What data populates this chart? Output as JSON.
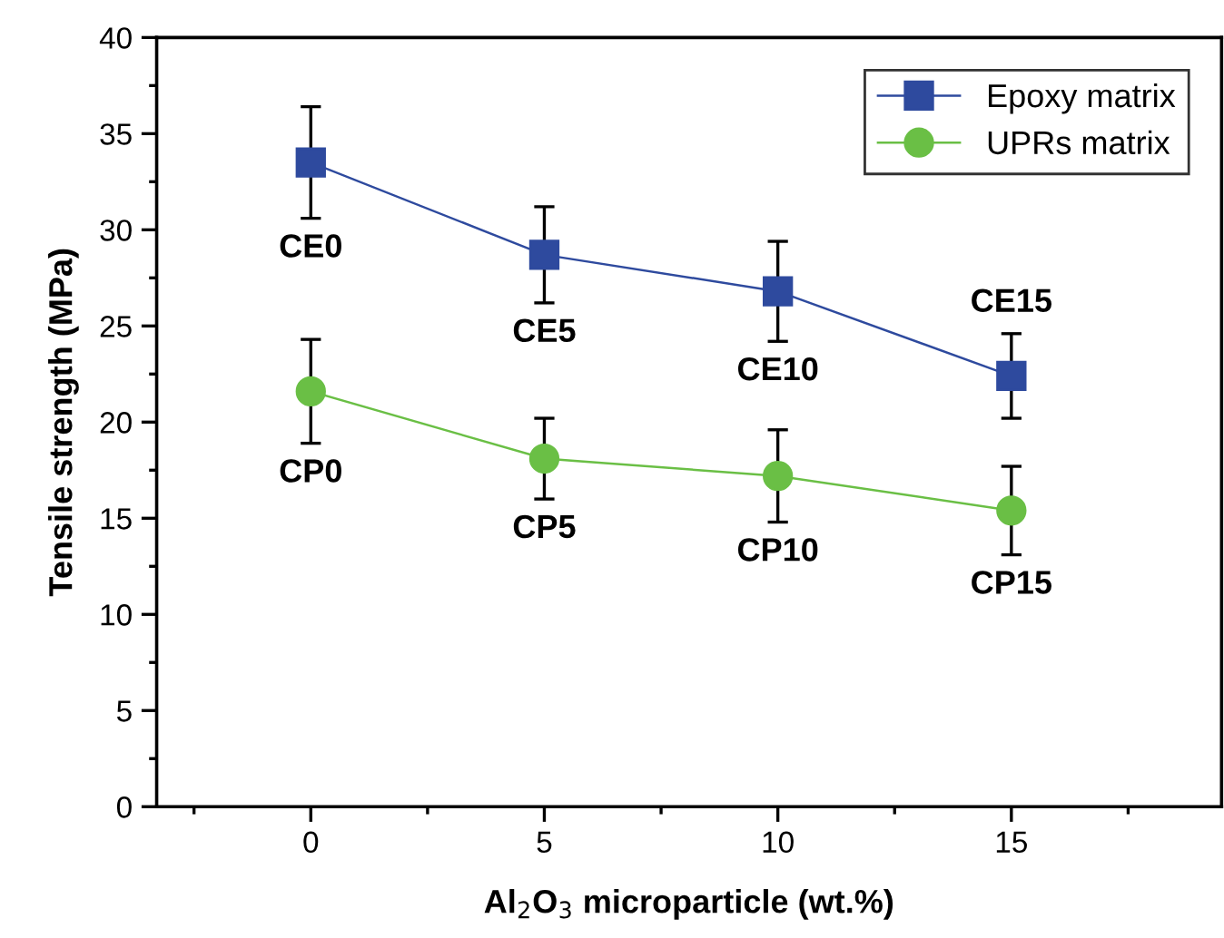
{
  "chart_data": {
    "type": "line",
    "xlabel": "Al$_{2}$O$_{3}$ microparticle (wt.%)",
    "ylabel": "Tensile strength (MPa)",
    "x": [
      0,
      5,
      10,
      15
    ],
    "series": [
      {
        "name": "Epoxy matrix",
        "color": "#2e4a9e",
        "marker": "square",
        "values": [
          33.5,
          28.7,
          26.8,
          22.4
        ],
        "errors": [
          2.9,
          2.5,
          2.6,
          2.2
        ]
      },
      {
        "name": "UPRs matrix",
        "color": "#6abf45",
        "marker": "circle",
        "values": [
          21.6,
          18.1,
          17.2,
          15.4
        ],
        "errors": [
          2.7,
          2.1,
          2.4,
          2.3
        ]
      }
    ],
    "annotations": [
      {
        "text": "CE0",
        "x": 0,
        "y": 33.5
      },
      {
        "text": "CE5",
        "x": 5,
        "y": 28.7
      },
      {
        "text": "CE10",
        "x": 10,
        "y": 26.8
      },
      {
        "text": "CE15",
        "x": 15,
        "y": 22.4
      },
      {
        "text": "CP0",
        "x": 0,
        "y": 21.6
      },
      {
        "text": "CP5",
        "x": 5,
        "y": 18.1
      },
      {
        "text": "CP10",
        "x": 10,
        "y": 17.2
      },
      {
        "text": "CP15",
        "x": 15,
        "y": 15.4
      }
    ],
    "xlim": [
      -3.3,
      19.5
    ],
    "xticks": [
      0,
      5,
      10,
      15
    ],
    "ylim": [
      0,
      40
    ],
    "yticks": [
      0,
      5,
      10,
      15,
      20,
      25,
      30,
      35,
      40
    ],
    "grid": false,
    "legend": "top right",
    "line_style": "solid"
  }
}
